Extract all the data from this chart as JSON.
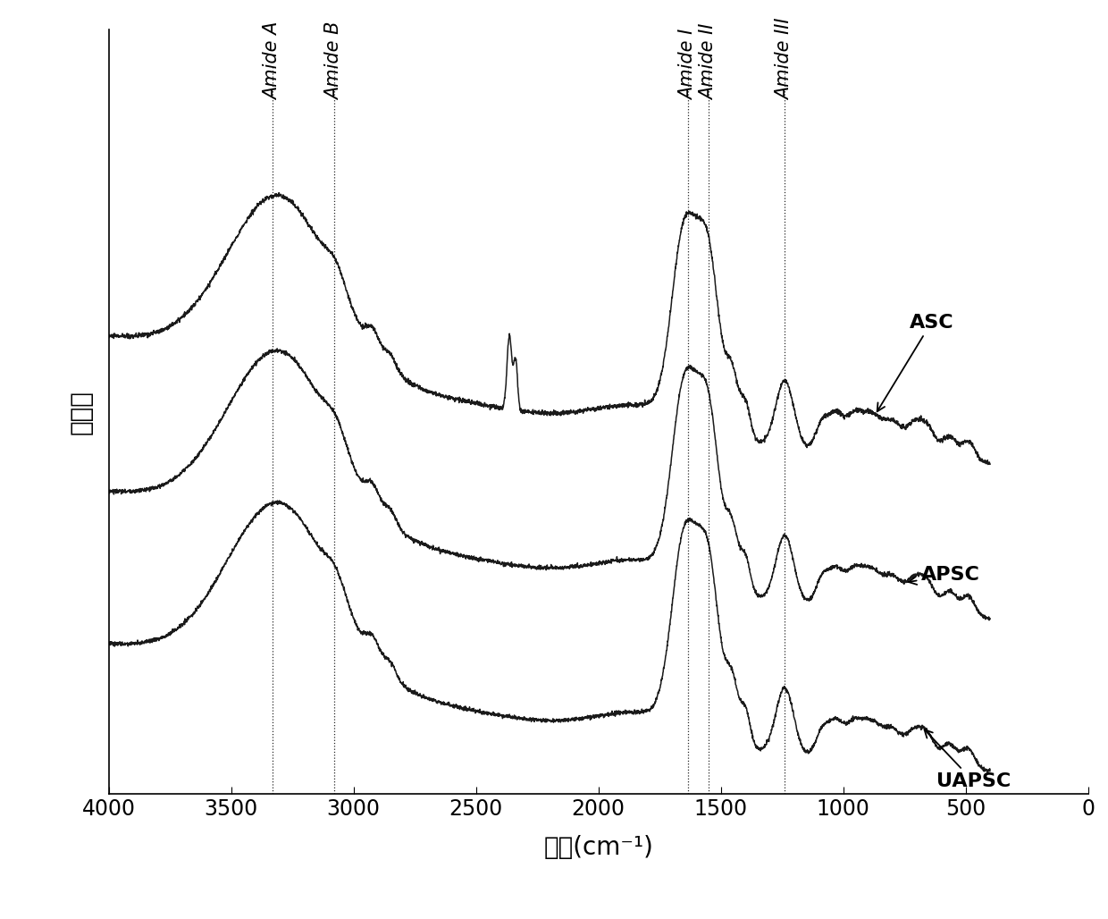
{
  "title": "",
  "xlabel": "波数(cm⁻¹)",
  "ylabel": "吸光度",
  "xlim": [
    4000,
    0
  ],
  "background_color": "#ffffff",
  "line_color": "#1a1a1a",
  "dashed_lines": [
    3330,
    3080,
    1632,
    1548,
    1240
  ],
  "amide_labels": [
    {
      "label": "Amide A",
      "x": 3330
    },
    {
      "label": "Amide B",
      "x": 3080
    },
    {
      "label": "Amide I",
      "x": 1632
    },
    {
      "label": "Amide II",
      "x": 1548
    },
    {
      "label": "Amide III",
      "x": 1240
    }
  ],
  "offsets": [
    0.85,
    0.42,
    0.0
  ],
  "xlabel_fontsize": 20,
  "ylabel_fontsize": 20,
  "tick_fontsize": 17,
  "label_fontsize": 15,
  "annotation_fontsize": 16
}
